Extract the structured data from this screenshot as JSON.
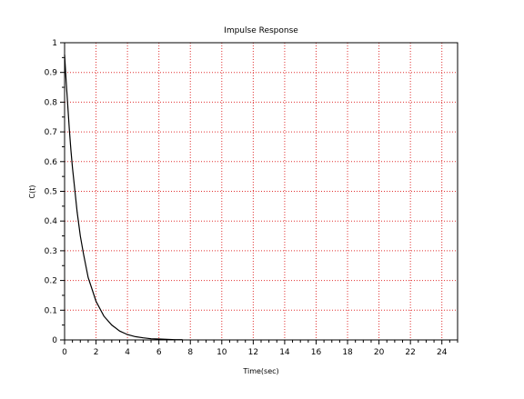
{
  "chart_data": {
    "type": "line",
    "title": "Impulse Response",
    "xlabel": "Time(sec)",
    "ylabel": "C(t)",
    "xlim": [
      0,
      25
    ],
    "ylim": [
      0,
      1
    ],
    "x_ticks": [
      0,
      2,
      4,
      6,
      8,
      10,
      12,
      14,
      16,
      18,
      20,
      22,
      24
    ],
    "x_tick_labels": [
      "0",
      "2",
      "4",
      "6",
      "8",
      "10",
      "12",
      "14",
      "16",
      "18",
      "20",
      "22",
      "24"
    ],
    "y_ticks": [
      0,
      0.1,
      0.2,
      0.3,
      0.4,
      0.5,
      0.6,
      0.7,
      0.8,
      0.9,
      1
    ],
    "y_tick_labels": [
      "0",
      "0.1",
      "0.2",
      "0.3",
      "0.4",
      "0.5",
      "0.6",
      "0.7",
      "0.8",
      "0.9",
      "1"
    ],
    "grid": true,
    "grid_color": "#e03030",
    "line_color": "#000000",
    "series": [
      {
        "x": [
          0,
          0.1,
          0.2,
          0.3,
          0.4,
          0.5,
          0.6,
          0.8,
          1.0,
          1.2,
          1.5,
          2.0,
          2.5,
          3.0,
          3.5,
          4.0,
          4.5,
          5.0,
          5.5,
          6.0,
          6.5,
          7.0,
          7.5
        ],
        "y": [
          0.96,
          0.87,
          0.79,
          0.71,
          0.64,
          0.58,
          0.53,
          0.43,
          0.35,
          0.29,
          0.21,
          0.13,
          0.08,
          0.05,
          0.03,
          0.018,
          0.011,
          0.007,
          0.004,
          0.003,
          0.002,
          0.001,
          0.001
        ]
      }
    ]
  }
}
